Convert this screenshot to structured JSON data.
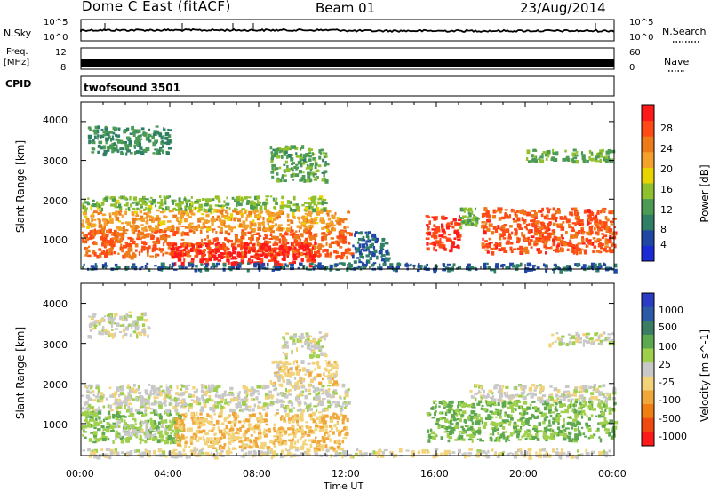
{
  "header": {
    "station": "Dome C East (fitACF)",
    "beam": "Beam 01",
    "date": "23/Aug/2014"
  },
  "status_panels": {
    "nsky_label": "N.Sky",
    "nsearch_label": "N.Search",
    "nsky_ticks": [
      "10^5",
      "10^0"
    ],
    "nsearch_ticks": [
      "10^5",
      "10^0"
    ],
    "freq_label_1": "Freq.",
    "freq_label_2": "[MHz]",
    "freq_ticks": [
      "12",
      "8"
    ],
    "nave_label": "Nave",
    "nave_ticks": [
      "60",
      "0"
    ],
    "cpid_label": "CPID",
    "cpid_value": "twofsound 3501"
  },
  "colors": {
    "power_scale": [
      "#1a2bd6",
      "#1f47a3",
      "#2f7f66",
      "#4c9b55",
      "#8fc02e",
      "#e8d400",
      "#f3a12a",
      "#ef7a1a",
      "#ff4a16",
      "#ff1a1a"
    ],
    "velocity_scale": [
      "#2a3cc4",
      "#2d5aa6",
      "#3a7d62",
      "#5ea84f",
      "#9fd04c",
      "#c8c8c8",
      "#f2d37a",
      "#f0a73a",
      "#f07d10",
      "#f04a12",
      "#ff1a1a"
    ]
  },
  "chart_data": [
    {
      "type": "heatmap",
      "name": "power",
      "xlabel": "",
      "ylabel": "Slant Range [km]",
      "xlim": [
        0,
        24
      ],
      "ylim": [
        200,
        4500
      ],
      "yticks": [
        "1000",
        "2000",
        "3000",
        "4000"
      ],
      "xticks": [
        "00:00",
        "04:00",
        "08:00",
        "12:00",
        "16:00",
        "20:00",
        "00:00"
      ],
      "colorbar": {
        "label": "Power [dB]",
        "ticks": [
          "28",
          "24",
          "20",
          "16",
          "12",
          "8",
          "4"
        ],
        "range": [
          0,
          30
        ]
      },
      "regions": [
        {
          "t": [
            0.0,
            12.2
          ],
          "r": [
            550,
            1250
          ],
          "value": 24
        },
        {
          "t": [
            0.0,
            12.0
          ],
          "r": [
            1250,
            1750
          ],
          "value": 20
        },
        {
          "t": [
            0.0,
            11.0
          ],
          "r": [
            1750,
            2100
          ],
          "value": 13
        },
        {
          "t": [
            4.0,
            10.5
          ],
          "r": [
            350,
            900
          ],
          "value": 28
        },
        {
          "t": [
            8.5,
            11.0
          ],
          "r": [
            2500,
            3400
          ],
          "value": 11
        },
        {
          "t": [
            0.3,
            4.0
          ],
          "r": [
            3200,
            3900
          ],
          "value": 9
        },
        {
          "t": [
            12.2,
            13.8
          ],
          "r": [
            400,
            1200
          ],
          "value": 6
        },
        {
          "t": [
            15.5,
            17.0
          ],
          "r": [
            700,
            1600
          ],
          "value": 27
        },
        {
          "t": [
            17.0,
            17.8
          ],
          "r": [
            1300,
            1800
          ],
          "value": 12
        },
        {
          "t": [
            18.0,
            24.0
          ],
          "r": [
            650,
            1800
          ],
          "value": 25
        },
        {
          "t": [
            20.0,
            24.0
          ],
          "r": [
            3000,
            3300
          ],
          "value": 12
        },
        {
          "t": [
            0.0,
            24.0
          ],
          "r": [
            200,
            380
          ],
          "value": 6
        }
      ]
    },
    {
      "type": "heatmap",
      "name": "velocity",
      "xlabel": "Time UT",
      "ylabel": "Slant Range [km]",
      "xlim": [
        0,
        24
      ],
      "ylim": [
        200,
        4500
      ],
      "yticks": [
        "1000",
        "2000",
        "3000",
        "4000"
      ],
      "xticks": [
        "00:00",
        "04:00",
        "08:00",
        "12:00",
        "16:00",
        "20:00",
        "00:00"
      ],
      "colorbar": {
        "label": "Velocity [m s^-1]",
        "ticks": [
          "1000",
          "500",
          "100",
          "25",
          "-25",
          "-100",
          "-500",
          "-1000"
        ],
        "range": [
          -1200,
          1200
        ]
      },
      "regions": [
        {
          "t": [
            0.0,
            4.5
          ],
          "r": [
            550,
            1350
          ],
          "value": 300
        },
        {
          "t": [
            1.5,
            4.0
          ],
          "r": [
            700,
            1100
          ],
          "value": 60
        },
        {
          "t": [
            0.0,
            12.0
          ],
          "r": [
            1350,
            2000
          ],
          "value": 0
        },
        {
          "t": [
            4.2,
            12.0
          ],
          "r": [
            400,
            1300
          ],
          "value": -300
        },
        {
          "t": [
            8.5,
            11.5
          ],
          "r": [
            2000,
            2600
          ],
          "value": -200
        },
        {
          "t": [
            9.0,
            11.0
          ],
          "r": [
            2700,
            3300
          ],
          "value": 0
        },
        {
          "t": [
            0.3,
            3.0
          ],
          "r": [
            3200,
            3800
          ],
          "value": 0
        },
        {
          "t": [
            15.5,
            24.0
          ],
          "r": [
            600,
            1600
          ],
          "value": 350
        },
        {
          "t": [
            17.5,
            24.0
          ],
          "r": [
            1600,
            2000
          ],
          "value": 0
        },
        {
          "t": [
            21.0,
            24.0
          ],
          "r": [
            3000,
            3300
          ],
          "value": 0
        },
        {
          "t": [
            0.0,
            24.0
          ],
          "r": [
            200,
            380
          ],
          "value": -60
        }
      ]
    }
  ]
}
